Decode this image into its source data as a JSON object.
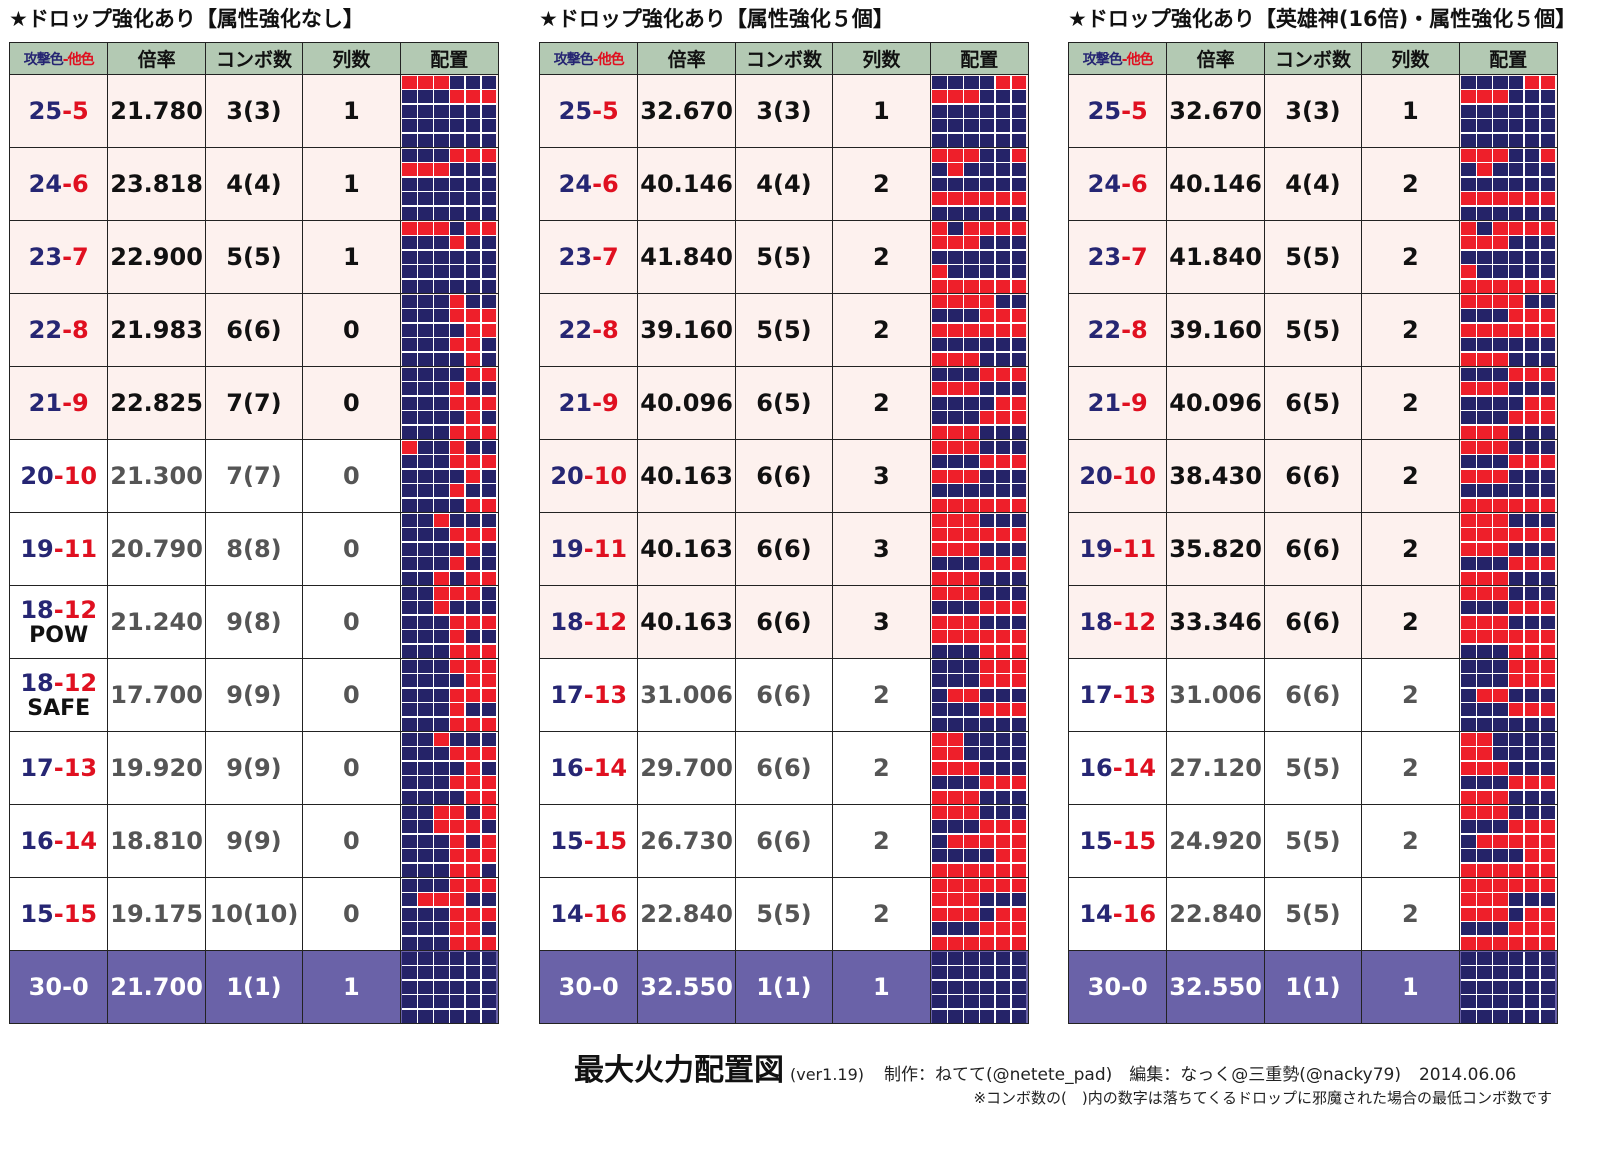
{
  "headers": {
    "attack": "攻撃色",
    "sep": "-",
    "other": "他色",
    "ratio": "倍率",
    "combo": "コンボ数",
    "cols": "列数",
    "layout": "配置"
  },
  "colors": {
    "red": "#ee1f2a",
    "navy": "#252368",
    "header_bg": "#b3c9b3",
    "highlight_bg": "#fdf1ee",
    "bottom_bg": "#6a62a8"
  },
  "tables": [
    {
      "title": "★ドロップ強化あり【属性強化なし】",
      "rows": [
        {
          "a": "25",
          "b": "5",
          "sub": "",
          "ratio": "21.780",
          "combo": "3(3)",
          "cols": "1",
          "style": "hl",
          "grid": "111000000111000000000000000000"
        },
        {
          "a": "24",
          "b": "6",
          "sub": "",
          "ratio": "23.818",
          "combo": "4(4)",
          "cols": "1",
          "style": "hl",
          "grid": "000111111000000000000000000000"
        },
        {
          "a": "23",
          "b": "7",
          "sub": "",
          "ratio": "22.900",
          "combo": "5(5)",
          "cols": "1",
          "style": "hl",
          "grid": "111011000100000000000000000000"
        },
        {
          "a": "22",
          "b": "8",
          "sub": "",
          "ratio": "21.983",
          "combo": "6(6)",
          "cols": "0",
          "style": "hl",
          "grid": "000100000111000011000110000010"
        },
        {
          "a": "21",
          "b": "9",
          "sub": "",
          "ratio": "22.825",
          "combo": "7(7)",
          "cols": "0",
          "style": "hl",
          "grid": "000011000100000111000010000111"
        },
        {
          "a": "20",
          "b": "10",
          "sub": "",
          "ratio": "21.300",
          "combo": "7(7)",
          "cols": "0",
          "style": "pl",
          "grid": "100100000111000010000100000011"
        },
        {
          "a": "19",
          "b": "11",
          "sub": "",
          "ratio": "20.790",
          "combo": "8(8)",
          "cols": "0",
          "style": "pl",
          "grid": "001000000111000010000100001011"
        },
        {
          "a": "18",
          "b": "12",
          "sub": "POW",
          "ratio": "21.240",
          "combo": "9(8)",
          "cols": "0",
          "style": "pl",
          "grid": "001110001000000111000100000111"
        },
        {
          "a": "18",
          "b": "12",
          "sub": "SAFE",
          "ratio": "17.700",
          "combo": "9(9)",
          "cols": "0",
          "style": "pl",
          "grid": "000111000011000111000100000111"
        },
        {
          "a": "17",
          "b": "13",
          "sub": "",
          "ratio": "19.920",
          "combo": "9(9)",
          "cols": "0",
          "style": "pl",
          "grid": "001000000111000010000111000011"
        },
        {
          "a": "16",
          "b": "14",
          "sub": "",
          "ratio": "18.810",
          "combo": "9(9)",
          "cols": "0",
          "style": "pl",
          "grid": "001101001110000101000111000110"
        },
        {
          "a": "15",
          "b": "15",
          "sub": "",
          "ratio": "19.175",
          "combo": "10(10)",
          "cols": "0",
          "style": "pl",
          "grid": "000111011100000111000110000111"
        },
        {
          "a": "30",
          "b": "0",
          "sub": "",
          "ratio": "21.700",
          "combo": "1(1)",
          "cols": "1",
          "style": "bt",
          "grid": "000000000000000000000000000000"
        }
      ]
    },
    {
      "title": "★ドロップ強化あり【属性強化５個】",
      "rows": [
        {
          "a": "25",
          "b": "5",
          "sub": "",
          "ratio": "32.670",
          "combo": "3(3)",
          "cols": "1",
          "style": "hl",
          "grid": "000011111000000000000000000000"
        },
        {
          "a": "24",
          "b": "6",
          "sub": "",
          "ratio": "40.146",
          "combo": "4(4)",
          "cols": "2",
          "style": "hl",
          "grid": "111001010000000000111111000000"
        },
        {
          "a": "23",
          "b": "7",
          "sub": "",
          "ratio": "41.840",
          "combo": "5(5)",
          "cols": "2",
          "style": "hl",
          "grid": "101111111000000000100000111111"
        },
        {
          "a": "22",
          "b": "8",
          "sub": "",
          "ratio": "39.160",
          "combo": "5(5)",
          "cols": "2",
          "style": "hl",
          "grid": "111100000111111111000000111000"
        },
        {
          "a": "21",
          "b": "9",
          "sub": "",
          "ratio": "40.096",
          "combo": "6(5)",
          "cols": "2",
          "style": "hl",
          "grid": "000111111000000011000111111000"
        },
        {
          "a": "20",
          "b": "10",
          "sub": "",
          "ratio": "40.163",
          "combo": "6(6)",
          "cols": "3",
          "style": "hl",
          "grid": "111000000111111000000000111111"
        },
        {
          "a": "19",
          "b": "11",
          "sub": "",
          "ratio": "40.163",
          "combo": "6(6)",
          "cols": "3",
          "style": "hl",
          "grid": "111000111111111000000111111000"
        },
        {
          "a": "18",
          "b": "12",
          "sub": "",
          "ratio": "40.163",
          "combo": "6(6)",
          "cols": "3",
          "style": "hl",
          "grid": "111000000111111000111111000111"
        },
        {
          "a": "17",
          "b": "13",
          "sub": "",
          "ratio": "31.006",
          "combo": "6(6)",
          "cols": "2",
          "style": "pl",
          "grid": "000111000111011000000111000000"
        },
        {
          "a": "16",
          "b": "14",
          "sub": "",
          "ratio": "29.700",
          "combo": "6(6)",
          "cols": "2",
          "style": "pl",
          "grid": "110000110000111000000111111000"
        },
        {
          "a": "15",
          "b": "15",
          "sub": "",
          "ratio": "26.730",
          "combo": "6(6)",
          "cols": "2",
          "style": "pl",
          "grid": "111000000111011111000011111111"
        },
        {
          "a": "14",
          "b": "16",
          "sub": "",
          "ratio": "22.840",
          "combo": "5(5)",
          "cols": "2",
          "style": "pl",
          "grid": "111111111000111011000111111111"
        },
        {
          "a": "30",
          "b": "0",
          "sub": "",
          "ratio": "32.550",
          "combo": "1(1)",
          "cols": "1",
          "style": "bt",
          "grid": "000000000000000000000000000000"
        }
      ]
    },
    {
      "title": "★ドロップ強化あり【英雄神(16倍)・属性強化５個】",
      "rows": [
        {
          "a": "25",
          "b": "5",
          "sub": "",
          "ratio": "32.670",
          "combo": "3(3)",
          "cols": "1",
          "style": "hl",
          "grid": "000011111000000000000000000000"
        },
        {
          "a": "24",
          "b": "6",
          "sub": "",
          "ratio": "40.146",
          "combo": "4(4)",
          "cols": "2",
          "style": "hl",
          "grid": "111001010000000000111111000000"
        },
        {
          "a": "23",
          "b": "7",
          "sub": "",
          "ratio": "41.840",
          "combo": "5(5)",
          "cols": "2",
          "style": "hl",
          "grid": "101111111000000000100000111111"
        },
        {
          "a": "22",
          "b": "8",
          "sub": "",
          "ratio": "39.160",
          "combo": "5(5)",
          "cols": "2",
          "style": "hl",
          "grid": "111100000111111111000000111000"
        },
        {
          "a": "21",
          "b": "9",
          "sub": "",
          "ratio": "40.096",
          "combo": "6(5)",
          "cols": "2",
          "style": "hl",
          "grid": "000111111000000011000111111000"
        },
        {
          "a": "20",
          "b": "10",
          "sub": "",
          "ratio": "38.430",
          "combo": "6(6)",
          "cols": "2",
          "style": "hl",
          "grid": "111000000111111000000000111111"
        },
        {
          "a": "19",
          "b": "11",
          "sub": "",
          "ratio": "35.820",
          "combo": "6(6)",
          "cols": "2",
          "style": "hl",
          "grid": "111000111111111000000111111000"
        },
        {
          "a": "18",
          "b": "12",
          "sub": "",
          "ratio": "33.346",
          "combo": "6(6)",
          "cols": "2",
          "style": "hl",
          "grid": "111000000111111000111111000111"
        },
        {
          "a": "17",
          "b": "13",
          "sub": "",
          "ratio": "31.006",
          "combo": "6(6)",
          "cols": "2",
          "style": "pl",
          "grid": "000111000111011000000111000000"
        },
        {
          "a": "16",
          "b": "14",
          "sub": "",
          "ratio": "27.120",
          "combo": "5(5)",
          "cols": "2",
          "style": "pl",
          "grid": "110000110000111000000111111000"
        },
        {
          "a": "15",
          "b": "15",
          "sub": "",
          "ratio": "24.920",
          "combo": "5(5)",
          "cols": "2",
          "style": "pl",
          "grid": "111000000111011111000011111111"
        },
        {
          "a": "14",
          "b": "16",
          "sub": "",
          "ratio": "22.840",
          "combo": "5(5)",
          "cols": "2",
          "style": "pl",
          "grid": "111111111000111011000111111111"
        },
        {
          "a": "30",
          "b": "0",
          "sub": "",
          "ratio": "32.550",
          "combo": "1(1)",
          "cols": "1",
          "style": "bt",
          "grid": "000000000000000000000000000000"
        }
      ]
    }
  ],
  "footer": {
    "main": "最大火力配置図",
    "version": "(ver1.19)",
    "credit": "制作：ねてて(@netete_pad)　編集：なっく@三重勢(@nacky79)",
    "date": "2014.06.06",
    "note": "※コンボ数の(　)内の数字は落ちてくるドロップに邪魔された場合の最低コンボ数です"
  }
}
